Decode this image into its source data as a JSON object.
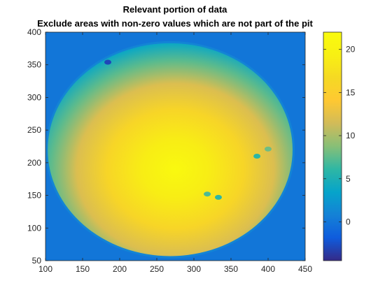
{
  "window": {
    "title_line1": "Relevant portion of data",
    "title_line2": "Exclude areas with non-zero values which are not part of the pit"
  },
  "chart_data": {
    "type": "heatmap",
    "title": "Relevant portion of data",
    "subtitle": "Exclude areas with non-zero values which are not part of the pit",
    "xlabel": "",
    "ylabel": "",
    "xlim": [
      100,
      450
    ],
    "ylim": [
      50,
      400
    ],
    "xticks": [
      100,
      150,
      200,
      250,
      300,
      350,
      400,
      450
    ],
    "yticks": [
      50,
      100,
      150,
      200,
      250,
      300,
      350,
      400
    ],
    "colormap": "parula",
    "clim": [
      -4.5,
      22
    ],
    "colorbar_ticks": [
      0,
      5,
      10,
      15,
      20
    ],
    "background_value": 0,
    "pit": {
      "center_x": 268,
      "center_y": 220,
      "radius_x": 165,
      "radius_y": 163,
      "rim_value": 2,
      "peak_value": 21.5,
      "peak_x": 275,
      "peak_y": 190
    },
    "anomalies": [
      {
        "x": 318,
        "y": 152,
        "value": 7
      },
      {
        "x": 333,
        "y": 147,
        "value": 6
      },
      {
        "x": 385,
        "y": 210,
        "value": 6
      },
      {
        "x": 400,
        "y": 221,
        "value": 8
      },
      {
        "x": 184,
        "y": 354,
        "value": -3
      }
    ],
    "grid": false,
    "legend": "none"
  }
}
